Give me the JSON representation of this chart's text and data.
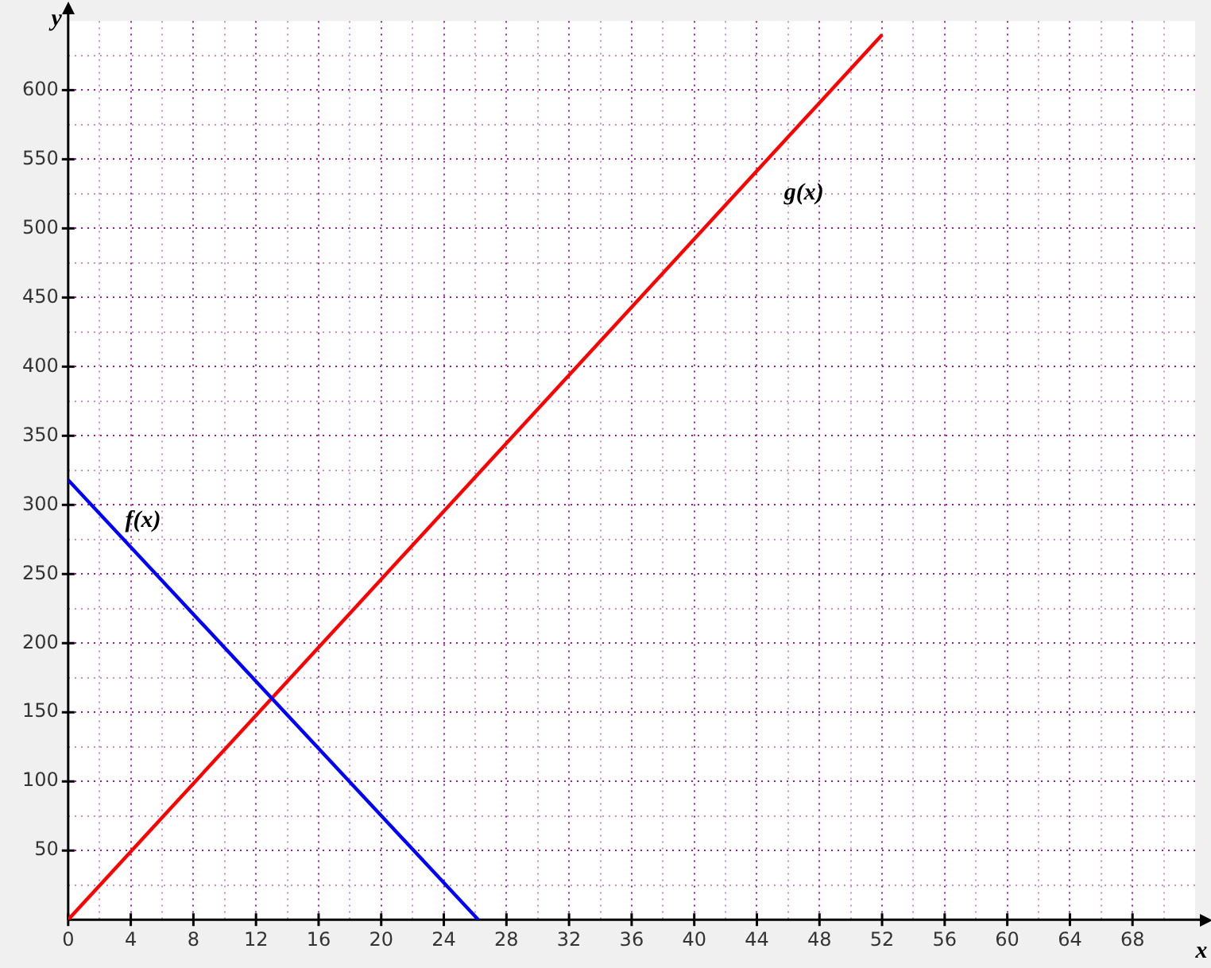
{
  "chart_data": {
    "type": "line",
    "xlabel": "x",
    "ylabel": "y",
    "series": [
      {
        "name": "f(x)",
        "color": "#0000ff",
        "x": [
          0,
          26.2
        ],
        "values": [
          318,
          0
        ]
      },
      {
        "name": "g(x)",
        "color": "#ff0000",
        "x": [
          0,
          52
        ],
        "values": [
          0,
          640
        ]
      }
    ],
    "xlim": [
      0,
      72
    ],
    "ylim": [
      0,
      650
    ],
    "xticks": [
      0,
      {
        "value": 2,
        "label": null
      },
      4,
      {
        "value": 6,
        "label": null
      },
      8,
      {
        "value": 10,
        "label": null
      },
      12,
      {
        "value": 14,
        "label": null
      },
      16,
      {
        "value": 18,
        "label": null
      },
      20,
      {
        "value": 22,
        "label": null
      },
      24,
      {
        "value": 26,
        "label": null
      },
      28,
      {
        "value": 30,
        "label": null
      },
      32,
      {
        "value": 34,
        "label": null
      },
      36,
      {
        "value": 38,
        "label": null
      },
      40,
      {
        "value": 42,
        "label": null
      },
      44,
      {
        "value": 46,
        "label": null
      },
      48,
      {
        "value": 50,
        "label": null
      },
      52,
      {
        "value": 54,
        "label": null
      },
      56,
      {
        "value": 58,
        "label": null
      },
      60,
      {
        "value": 62,
        "label": null
      },
      64,
      {
        "value": 66,
        "label": null
      },
      68,
      {
        "value": 70,
        "label": null
      }
    ],
    "yticks": [
      {
        "value": 25,
        "label": null
      },
      50,
      {
        "value": 75,
        "label": null
      },
      100,
      {
        "value": 125,
        "label": null
      },
      150,
      {
        "value": 175,
        "label": null
      },
      200,
      {
        "value": 225,
        "label": null
      },
      250,
      {
        "value": 275,
        "label": null
      },
      300,
      {
        "value": 325,
        "label": null
      },
      350,
      {
        "value": 375,
        "label": null
      },
      400,
      {
        "value": 425,
        "label": null
      },
      450,
      {
        "value": 475,
        "label": null
      },
      500,
      {
        "value": 525,
        "label": null
      },
      550,
      {
        "value": 575,
        "label": null
      },
      600,
      {
        "value": 625,
        "label": null
      }
    ],
    "grid": true,
    "marker": "none",
    "line_style": "solid",
    "legend": false
  }
}
